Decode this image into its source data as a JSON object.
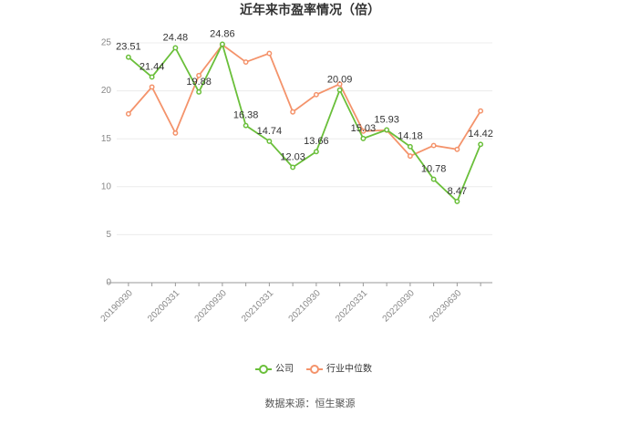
{
  "chart_data": {
    "type": "line",
    "title": "近年来市盈率情况（倍）",
    "source": "数据来源：恒生聚源",
    "categories": [
      "20190930",
      null,
      "20200331",
      null,
      "20200930",
      null,
      "20210331",
      null,
      "20210930",
      null,
      "20220331",
      null,
      "20220930",
      null,
      "20230630",
      null
    ],
    "series": [
      {
        "name": "公司",
        "color": "#6abf3a",
        "values": [
          23.51,
          21.44,
          24.48,
          19.88,
          24.86,
          16.38,
          14.74,
          12.03,
          13.66,
          20.09,
          15.03,
          15.93,
          14.18,
          10.78,
          8.47,
          14.42
        ],
        "show_labels": true
      },
      {
        "name": "行业中位数",
        "color": "#f4936b",
        "values": [
          17.6,
          20.4,
          15.6,
          21.6,
          24.8,
          23.0,
          23.9,
          17.8,
          19.6,
          20.7,
          15.8,
          15.9,
          13.2,
          14.3,
          13.9,
          17.9
        ],
        "show_labels": false
      }
    ],
    "ylim": [
      0,
      25
    ],
    "yticks": [
      0,
      5,
      10,
      15,
      20,
      25
    ],
    "grid": true,
    "legend": "bottom"
  }
}
